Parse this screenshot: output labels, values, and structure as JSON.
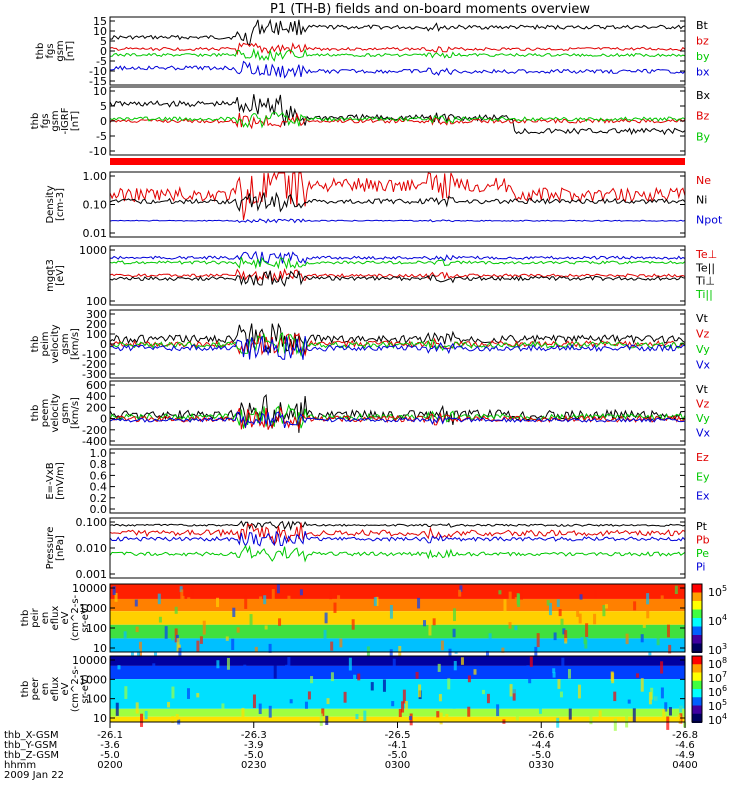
{
  "title": "P1 (TH-B) fields and on-board moments overview",
  "colors": {
    "black": "#000000",
    "red": "#e00000",
    "green": "#00c800",
    "blue": "#0000d8",
    "frame": "#000000",
    "flag": "#ff0000"
  },
  "panels": [
    {
      "ylabel": [
        "thb",
        "fgs",
        "gsm",
        "[nT]"
      ],
      "ticks": [
        "15",
        "10",
        "5",
        "0",
        "-5",
        "-10",
        "-15"
      ],
      "legend": [
        {
          "t": "Bt",
          "c": "black"
        },
        {
          "t": "bz",
          "c": "red"
        },
        {
          "t": "by",
          "c": "green"
        },
        {
          "t": "bx",
          "c": "blue"
        }
      ]
    },
    {
      "ylabel": [
        "thb",
        "fgs",
        "gsm",
        "-IGRF",
        "[nT]"
      ],
      "ticks": [
        "10",
        "5",
        "0",
        "-5",
        "-10"
      ],
      "legend": [
        {
          "t": "Bx",
          "c": "black"
        },
        {
          "t": "Bz",
          "c": "red"
        },
        {
          "t": "By",
          "c": "green"
        }
      ]
    },
    {
      "ylabel": [
        "Density",
        "[cm-3]"
      ],
      "ticks": [
        "1.00",
        "0.10",
        "0.01"
      ],
      "legend": [
        {
          "t": "Ne",
          "c": "red"
        },
        {
          "t": "Ni",
          "c": "black"
        },
        {
          "t": "Npot",
          "c": "blue"
        }
      ]
    },
    {
      "ylabel": [
        "mgqt3",
        "[eV]"
      ],
      "ticks": [
        "1000",
        "100"
      ],
      "legend": [
        {
          "t": "Te⊥",
          "c": "red"
        },
        {
          "t": "Te||",
          "c": "black"
        },
        {
          "t": "Ti⊥",
          "c": "black"
        },
        {
          "t": "Ti||",
          "c": "green"
        }
      ]
    },
    {
      "ylabel": [
        "thb",
        "peim",
        "velocity",
        "gsm",
        "[km/s]"
      ],
      "ticks": [
        "300",
        "200",
        "100",
        "0",
        "-100",
        "-200",
        "-300"
      ],
      "legend": [
        {
          "t": "Vt",
          "c": "black"
        },
        {
          "t": "Vz",
          "c": "red"
        },
        {
          "t": "Vy",
          "c": "green"
        },
        {
          "t": "Vx",
          "c": "blue"
        }
      ]
    },
    {
      "ylabel": [
        "thb",
        "peem",
        "velocity",
        "gsm",
        "[km/s]"
      ],
      "ticks": [
        "600",
        "400",
        "200",
        "0",
        "-200",
        "-400"
      ],
      "legend": [
        {
          "t": "Vt",
          "c": "black"
        },
        {
          "t": "Vz",
          "c": "red"
        },
        {
          "t": "Vy",
          "c": "green"
        },
        {
          "t": "Vx",
          "c": "blue"
        }
      ]
    },
    {
      "ylabel": [
        "E=-VxB",
        "[mV/m]"
      ],
      "ticks": [
        "1.0",
        "0.8",
        "0.6",
        "0.4",
        "0.2",
        "0.0"
      ],
      "legend": [
        {
          "t": "Ez",
          "c": "red"
        },
        {
          "t": "Ey",
          "c": "green"
        },
        {
          "t": "Ex",
          "c": "blue"
        }
      ]
    },
    {
      "ylabel": [
        "Pressure",
        "[nPa]"
      ],
      "ticks": [
        "0.100",
        "0.010",
        "0.001"
      ],
      "legend": [
        {
          "t": "Pt",
          "c": "black"
        },
        {
          "t": "Pb",
          "c": "red"
        },
        {
          "t": "Pe",
          "c": "green"
        },
        {
          "t": "Pi",
          "c": "blue"
        }
      ]
    },
    {
      "ylabel": [
        "thb",
        "peir",
        "en",
        "eflux",
        "eV",
        "(cm^2-s-",
        "sr-eV)"
      ],
      "ticks": [
        "10000",
        "1000",
        "100",
        "10"
      ],
      "colorbar": [
        "10^5",
        "10^4",
        "10^3"
      ]
    },
    {
      "ylabel": [
        "thb",
        "peer",
        "en",
        "eflux",
        "eV",
        "(cm^2-s-",
        "sr-eV)"
      ],
      "ticks": [
        "10000",
        "1000",
        "100",
        "10"
      ],
      "colorbar": [
        "10^8",
        "10^7",
        "10^6",
        "10^5",
        "10^4"
      ]
    }
  ],
  "x_axis": {
    "row_labels": [
      "thb_X-GSM",
      "thb_Y-GSM",
      "thb_Z-GSM",
      "hhmm",
      "2009 Jan 22"
    ],
    "columns": [
      [
        "-26.1",
        "-3.6",
        "-5.0",
        "0200"
      ],
      [
        "-26.3",
        "-3.9",
        "-5.0",
        "0230"
      ],
      [
        "-26.5",
        "-4.1",
        "-5.0",
        "0300"
      ],
      [
        "-26.6",
        "-4.4",
        "-5.0",
        "0330"
      ],
      [
        "-26.8",
        "-4.6",
        "-4.9",
        "0400"
      ]
    ]
  },
  "chart_data": {
    "type": "line",
    "title": "P1 (TH-B) fields and on-board moments overview",
    "x": [
      "0200",
      "0230",
      "0300",
      "0330",
      "0400"
    ],
    "xlabel": "hhmm",
    "date": "2009 Jan 22",
    "series": [
      {
        "name": "Bt",
        "panel": 0,
        "values": [
          7,
          11,
          8,
          6,
          8
        ]
      },
      {
        "name": "bz",
        "panel": 0,
        "values": [
          2,
          3,
          2,
          2,
          2
        ]
      },
      {
        "name": "by",
        "panel": 0,
        "values": [
          -1,
          -1,
          1,
          0,
          0
        ]
      },
      {
        "name": "bx",
        "panel": 0,
        "values": [
          -6,
          -9,
          -6,
          -6,
          -5
        ]
      },
      {
        "name": "Vt",
        "panel": 4,
        "values": [
          20,
          50,
          20,
          30,
          60
        ]
      },
      {
        "name": "Pt",
        "panel": 7,
        "values": [
          0.08,
          0.08,
          0.08,
          0.08,
          0.08
        ]
      }
    ]
  }
}
